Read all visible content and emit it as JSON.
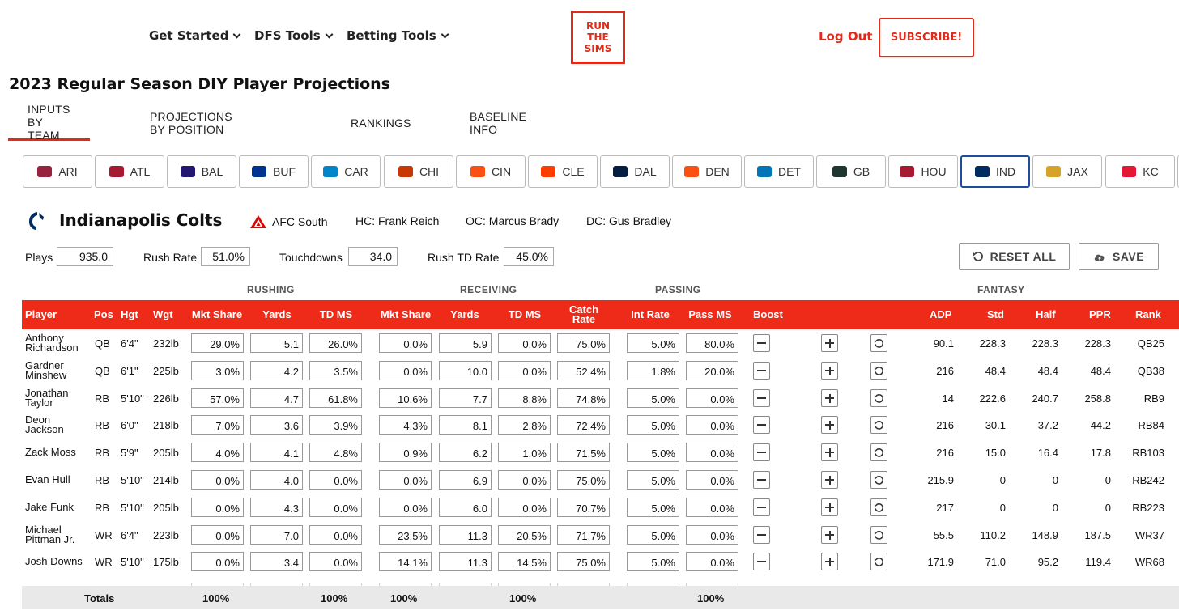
{
  "nav": {
    "items": [
      "Get Started",
      "DFS Tools",
      "Betting Tools"
    ],
    "logo_lines": [
      "RUN",
      "THE",
      "SIMS"
    ],
    "logout": "Log Out",
    "subscribe": "SUBSCRIBE!"
  },
  "page_title": "2023 Regular Season DIY Player Projections",
  "tabs": [
    "INPUTS BY TEAM",
    "PROJECTIONS BY POSITION",
    "RANKINGS",
    "BASELINE INFO"
  ],
  "teams": [
    {
      "abbr": "ARI",
      "color": "#97233f"
    },
    {
      "abbr": "ATL",
      "color": "#a71930"
    },
    {
      "abbr": "BAL",
      "color": "#241773"
    },
    {
      "abbr": "BUF",
      "color": "#00338d"
    },
    {
      "abbr": "CAR",
      "color": "#0085ca"
    },
    {
      "abbr": "CHI",
      "color": "#c83803"
    },
    {
      "abbr": "CIN",
      "color": "#fb4f14"
    },
    {
      "abbr": "CLE",
      "color": "#ff3c00"
    },
    {
      "abbr": "DAL",
      "color": "#041e42"
    },
    {
      "abbr": "DEN",
      "color": "#fb4f14"
    },
    {
      "abbr": "DET",
      "color": "#0076b6"
    },
    {
      "abbr": "GB",
      "color": "#203731"
    },
    {
      "abbr": "HOU",
      "color": "#a71930"
    },
    {
      "abbr": "IND",
      "color": "#002c5f"
    },
    {
      "abbr": "JAX",
      "color": "#d7a22a"
    },
    {
      "abbr": "KC",
      "color": "#e31837"
    }
  ],
  "team": {
    "name": "Indianapolis Colts",
    "conference": "AFC South",
    "hc": "HC: Frank Reich",
    "oc": "OC: Marcus Brady",
    "dc": "DC: Gus Bradley"
  },
  "team_inputs": {
    "plays_label": "Plays",
    "plays": "935.0",
    "rush_rate_label": "Rush Rate",
    "rush_rate": "51.0%",
    "td_label": "Touchdowns",
    "td": "34.0",
    "rush_td_label": "Rush TD Rate",
    "rush_td": "45.0%",
    "reset": "RESET ALL",
    "save": "SAVE"
  },
  "groups": {
    "rushing": "RUSHING",
    "receiving": "RECEIVING",
    "passing": "PASSING",
    "fantasy": "FANTASY"
  },
  "columns": {
    "player": "Player",
    "pos": "Pos",
    "hgt": "Hgt",
    "wgt": "Wgt",
    "rush_ms": "Mkt Share",
    "rush_yds": "Yards",
    "rush_td": "TD MS",
    "rec_ms": "Mkt Share",
    "rec_yds": "Yards",
    "rec_td": "TD MS",
    "catch": "Catch Rate",
    "int_rate": "Int Rate",
    "pass_ms": "Pass MS",
    "boost": "Boost",
    "adp": "ADP",
    "std": "Std",
    "half": "Half",
    "ppr": "PPR",
    "rank": "Rank"
  },
  "rows": [
    {
      "name": [
        "Anthony",
        "Richardson"
      ],
      "pos": "QB",
      "hgt": "6'4\"",
      "wgt": "232lb",
      "rush_ms": "29.0%",
      "rush_yds": "5.1",
      "rush_td": "26.0%",
      "rec_ms": "0.0%",
      "rec_yds": "5.9",
      "rec_td": "0.0%",
      "catch": "75.0%",
      "int_rate": "5.0%",
      "pass_ms": "80.0%",
      "adp": "90.1",
      "std": "228.3",
      "half": "228.3",
      "ppr": "228.3",
      "rank": "QB25"
    },
    {
      "name": [
        "Gardner",
        "Minshew"
      ],
      "pos": "QB",
      "hgt": "6'1\"",
      "wgt": "225lb",
      "rush_ms": "3.0%",
      "rush_yds": "4.2",
      "rush_td": "3.5%",
      "rec_ms": "0.0%",
      "rec_yds": "10.0",
      "rec_td": "0.0%",
      "catch": "52.4%",
      "int_rate": "1.8%",
      "pass_ms": "20.0%",
      "adp": "216",
      "std": "48.4",
      "half": "48.4",
      "ppr": "48.4",
      "rank": "QB38"
    },
    {
      "name": [
        "Jonathan",
        "Taylor"
      ],
      "pos": "RB",
      "hgt": "5'10\"",
      "wgt": "226lb",
      "rush_ms": "57.0%",
      "rush_yds": "4.7",
      "rush_td": "61.8%",
      "rec_ms": "10.6%",
      "rec_yds": "7.7",
      "rec_td": "8.8%",
      "catch": "74.8%",
      "int_rate": "5.0%",
      "pass_ms": "0.0%",
      "adp": "14",
      "std": "222.6",
      "half": "240.7",
      "ppr": "258.8",
      "rank": "RB9"
    },
    {
      "name": [
        "Deon",
        "Jackson"
      ],
      "pos": "RB",
      "hgt": "6'0\"",
      "wgt": "218lb",
      "rush_ms": "7.0%",
      "rush_yds": "3.6",
      "rush_td": "3.9%",
      "rec_ms": "4.3%",
      "rec_yds": "8.1",
      "rec_td": "2.8%",
      "catch": "72.4%",
      "int_rate": "5.0%",
      "pass_ms": "0.0%",
      "adp": "216",
      "std": "30.1",
      "half": "37.2",
      "ppr": "44.2",
      "rank": "RB84"
    },
    {
      "name": [
        "Zack Moss"
      ],
      "pos": "RB",
      "hgt": "5'9\"",
      "wgt": "205lb",
      "rush_ms": "4.0%",
      "rush_yds": "4.1",
      "rush_td": "4.8%",
      "rec_ms": "0.9%",
      "rec_yds": "6.2",
      "rec_td": "1.0%",
      "catch": "71.5%",
      "int_rate": "5.0%",
      "pass_ms": "0.0%",
      "adp": "216",
      "std": "15.0",
      "half": "16.4",
      "ppr": "17.8",
      "rank": "RB103"
    },
    {
      "name": [
        "Evan Hull"
      ],
      "pos": "RB",
      "hgt": "5'10\"",
      "wgt": "214lb",
      "rush_ms": "0.0%",
      "rush_yds": "4.0",
      "rush_td": "0.0%",
      "rec_ms": "0.0%",
      "rec_yds": "6.9",
      "rec_td": "0.0%",
      "catch": "75.0%",
      "int_rate": "5.0%",
      "pass_ms": "0.0%",
      "adp": "215.9",
      "std": "0",
      "half": "0",
      "ppr": "0",
      "rank": "RB242"
    },
    {
      "name": [
        "Jake Funk"
      ],
      "pos": "RB",
      "hgt": "5'10\"",
      "wgt": "205lb",
      "rush_ms": "0.0%",
      "rush_yds": "4.3",
      "rush_td": "0.0%",
      "rec_ms": "0.0%",
      "rec_yds": "6.0",
      "rec_td": "0.0%",
      "catch": "70.7%",
      "int_rate": "5.0%",
      "pass_ms": "0.0%",
      "adp": "217",
      "std": "0",
      "half": "0",
      "ppr": "0",
      "rank": "RB223"
    },
    {
      "name": [
        "Michael",
        "Pittman Jr."
      ],
      "pos": "WR",
      "hgt": "6'4\"",
      "wgt": "223lb",
      "rush_ms": "0.0%",
      "rush_yds": "7.0",
      "rush_td": "0.0%",
      "rec_ms": "23.5%",
      "rec_yds": "11.3",
      "rec_td": "20.5%",
      "catch": "71.7%",
      "int_rate": "5.0%",
      "pass_ms": "0.0%",
      "adp": "55.5",
      "std": "110.2",
      "half": "148.9",
      "ppr": "187.5",
      "rank": "WR37"
    },
    {
      "name": [
        "Josh Downs"
      ],
      "pos": "WR",
      "hgt": "5'10\"",
      "wgt": "175lb",
      "rush_ms": "0.0%",
      "rush_yds": "3.4",
      "rush_td": "0.0%",
      "rec_ms": "14.1%",
      "rec_yds": "11.3",
      "rec_td": "14.5%",
      "catch": "75.0%",
      "int_rate": "5.0%",
      "pass_ms": "0.0%",
      "adp": "171.9",
      "std": "71.0",
      "half": "95.2",
      "ppr": "119.4",
      "rank": "WR68"
    }
  ],
  "totals": {
    "label": "Totals",
    "rush_ms": "100%",
    "rush_td": "100%",
    "rec_ms": "100%",
    "rec_td": "100%",
    "pass_ms": "100%"
  }
}
